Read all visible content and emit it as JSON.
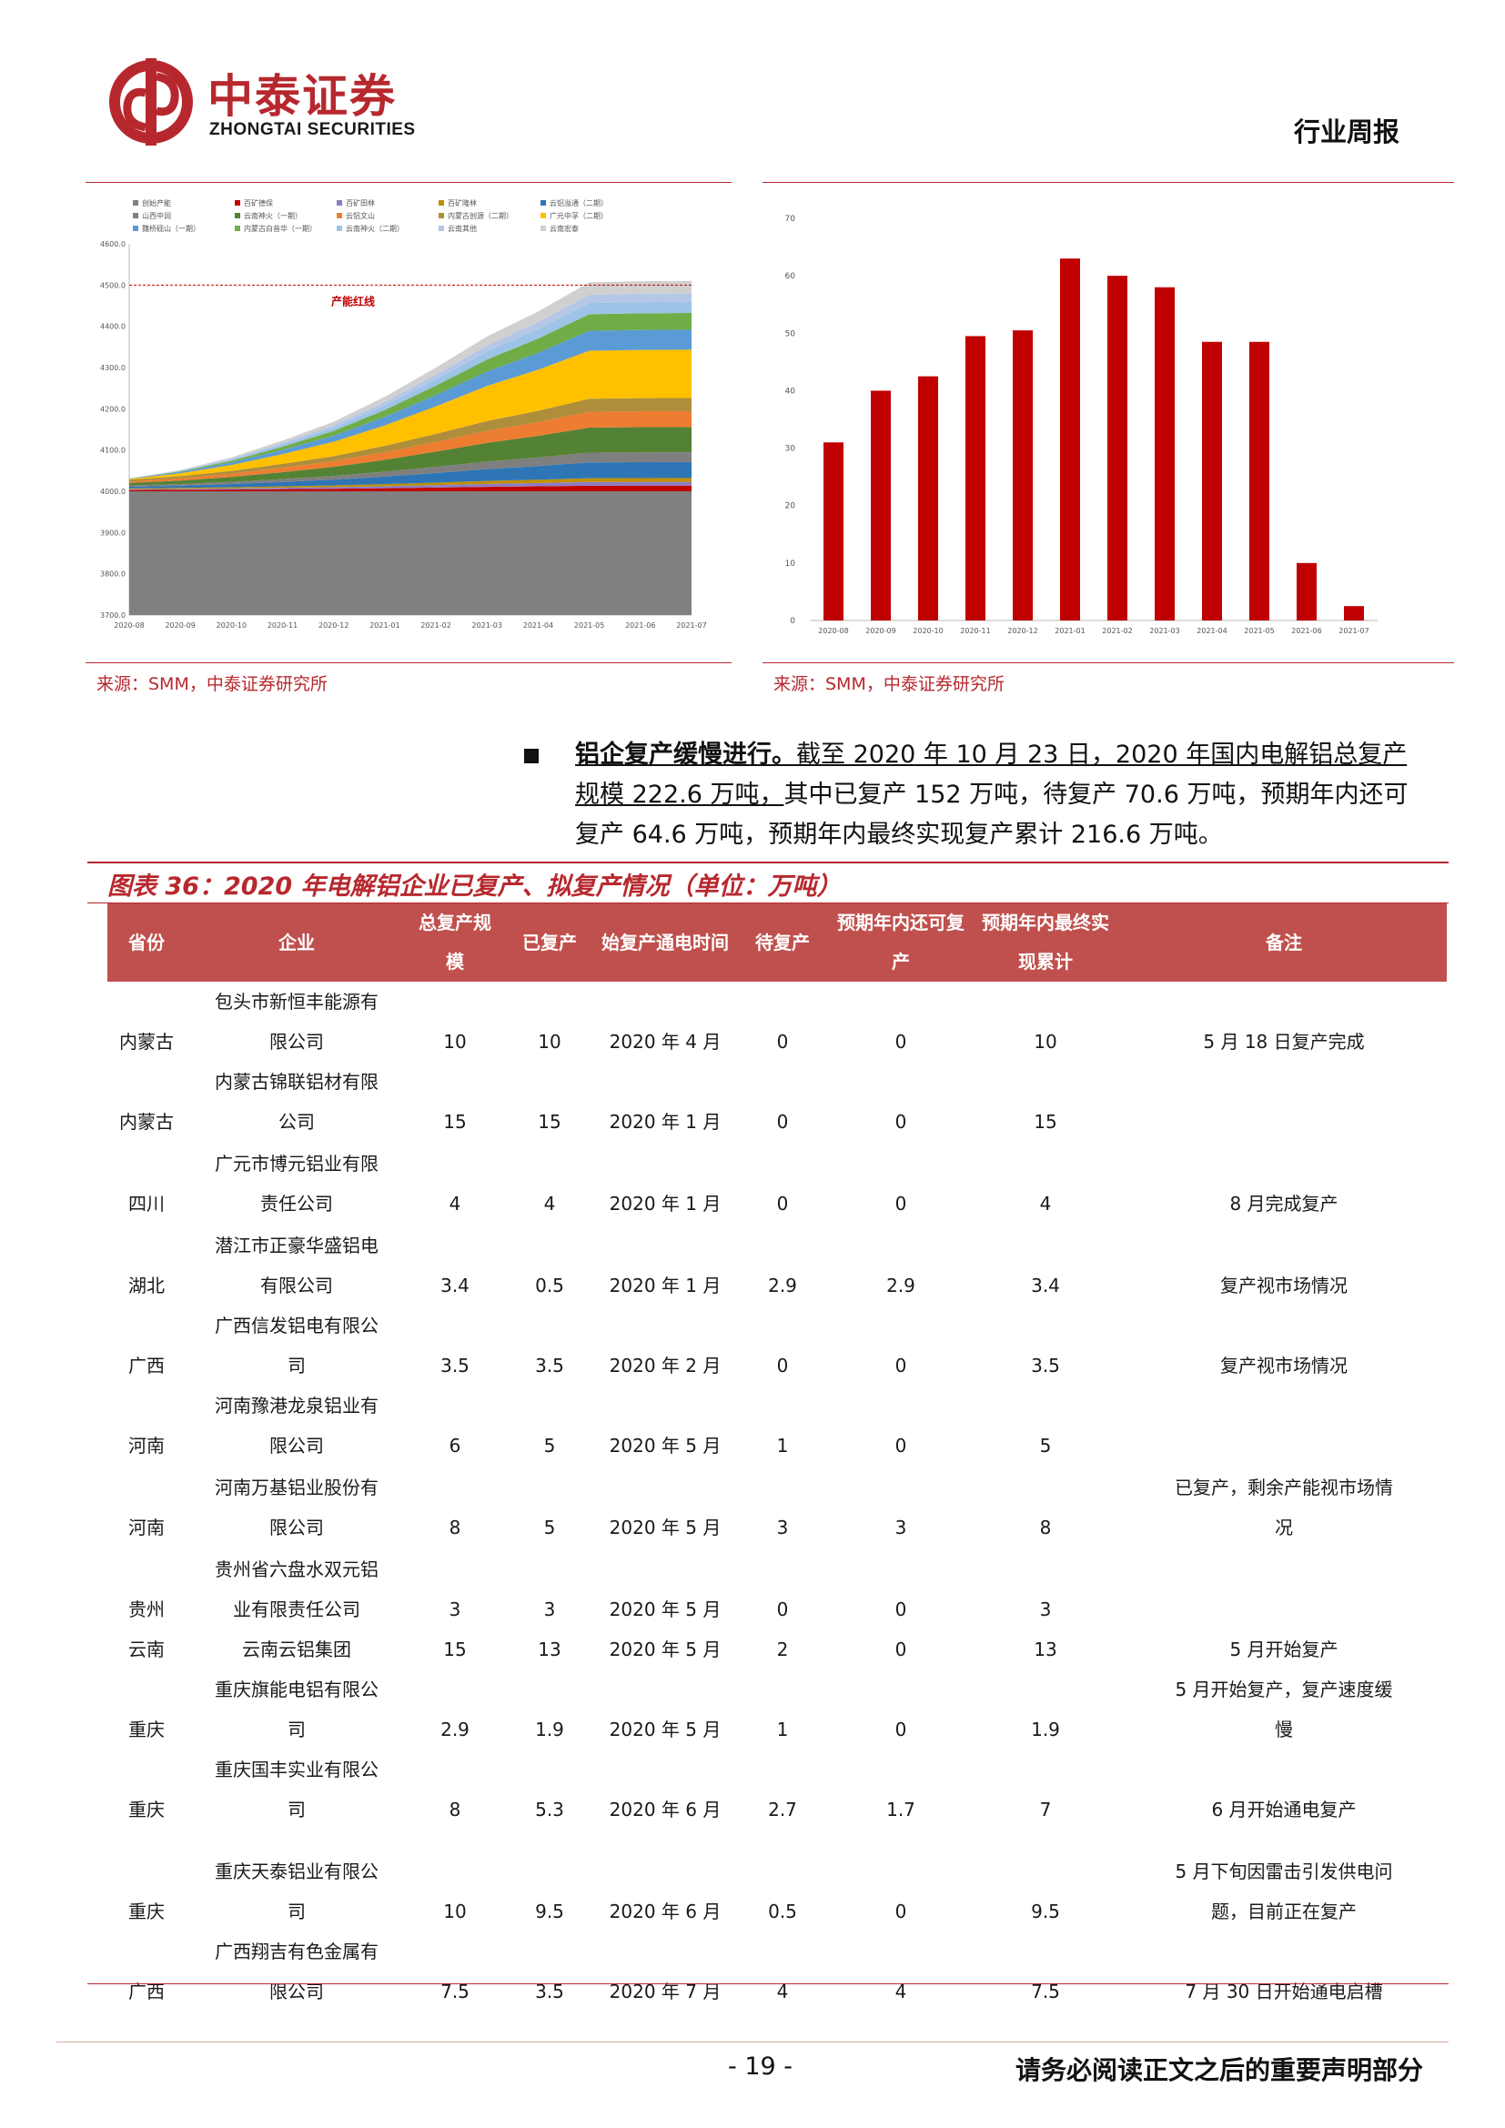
{
  "header": {
    "logo_cn": "中泰证券",
    "logo_en": "ZHONGTAI SECURITIES",
    "report_type": "行业周报"
  },
  "sources": {
    "left": "来源：SMM，中泰证券研究所",
    "right": "来源：SMM，中泰证券研究所"
  },
  "chart_data": [
    {
      "type": "area",
      "stacked": true,
      "legend": [
        "创始产能",
        "百矿德保",
        "百矿田林",
        "百矿隆林",
        "云铝溢通（二期）",
        "山西中润",
        "云南神火（一期）",
        "云铝文山",
        "内蒙古创源（二期）",
        "广元中孚（二期）",
        "魏桥砚山（一期）",
        "内蒙古白音华（一期）",
        "云南神火（二期）",
        "云南其他",
        "云南宏泰"
      ],
      "colors": [
        "#808080",
        "#c00000",
        "#8e7cc3",
        "#bf9000",
        "#2e75b6",
        "#7f7f7f",
        "#548235",
        "#ed7d31",
        "#ae8e3a",
        "#ffc000",
        "#5b9bd5",
        "#70ad47",
        "#9dc3e6",
        "#b4c7e7",
        "#d0d0d0"
      ],
      "categories": [
        "2020-08",
        "2020-09",
        "2020-10",
        "2020-11",
        "2020-12",
        "2021-01",
        "2021-02",
        "2021-03",
        "2021-04",
        "2021-05",
        "2021-06",
        "2021-07"
      ],
      "ylim": [
        3700,
        4600
      ],
      "yticks": [
        "3700.0",
        "3800.0",
        "3900.0",
        "4000.0",
        "4100.0",
        "4200.0",
        "4300.0",
        "4400.0",
        "4500.0",
        "4600.0"
      ],
      "redline_value": 4500,
      "redline_label": "产能红线",
      "totals": [
        4028,
        4048,
        4078,
        4118,
        4163,
        4223,
        4293,
        4368,
        4428,
        4498,
        4500,
        4500
      ]
    },
    {
      "type": "bar",
      "categories": [
        "2020-08",
        "2020-09",
        "2020-10",
        "2020-11",
        "2020-12",
        "2021-01",
        "2021-02",
        "2021-03",
        "2021-04",
        "2021-05",
        "2021-06",
        "2021-07"
      ],
      "values": [
        31,
        40,
        42.5,
        49.5,
        50.5,
        63,
        60,
        58,
        48.5,
        48.5,
        10,
        2.5
      ],
      "ylim": [
        0,
        70
      ],
      "yticks": [
        "0",
        "10",
        "20",
        "30",
        "40",
        "50",
        "60",
        "70"
      ],
      "color": "#c00000"
    }
  ],
  "paragraph": {
    "lead": "铝企复产缓慢进行。",
    "underlined": "截至 2020 年 10 月 23 日，2020 年国内电解铝总复产规模 222.6 万吨，",
    "rest": "其中已复产 152 万吨，待复产 70.6 万吨，预期年内还可复产 64.6 万吨，预期年内最终实现复产累计 216.6 万吨。"
  },
  "table": {
    "title": "图表 36：2020 年电解铝企业已复产、拟复产情况（单位：万吨）",
    "headers": [
      "省份",
      "企业",
      "总复产规模",
      "已复产",
      "始复产通电时间",
      "待复产",
      "预期年内还可复产",
      "预期年内最终实现累计",
      "备注"
    ],
    "rows": [
      {
        "prov": "内蒙古",
        "comp": "包头市新恒丰能源有限公司",
        "total": "10",
        "done": "10",
        "time": "2020 年 4 月",
        "pending": "0",
        "may": "0",
        "final": "10",
        "note": "5 月 18 日复产完成"
      },
      {
        "prov": "内蒙古",
        "comp": "内蒙古锦联铝材有限公司",
        "total": "15",
        "done": "15",
        "time": "2020 年 1 月",
        "pending": "0",
        "may": "0",
        "final": "15",
        "note": ""
      },
      {
        "prov": "四川",
        "comp": "广元市博元铝业有限责任公司",
        "total": "4",
        "done": "4",
        "time": "2020 年 1 月",
        "pending": "0",
        "may": "0",
        "final": "4",
        "note": "8 月完成复产"
      },
      {
        "prov": "湖北",
        "comp": "潜江市正豪华盛铝电有限公司",
        "total": "3.4",
        "done": "0.5",
        "time": "2020 年 1 月",
        "pending": "2.9",
        "may": "2.9",
        "final": "3.4",
        "note": "复产视市场情况"
      },
      {
        "prov": "广西",
        "comp": "广西信发铝电有限公司",
        "total": "3.5",
        "done": "3.5",
        "time": "2020 年 2 月",
        "pending": "0",
        "may": "0",
        "final": "3.5",
        "note": "复产视市场情况"
      },
      {
        "prov": "河南",
        "comp": "河南豫港龙泉铝业有限公司",
        "total": "6",
        "done": "5",
        "time": "2020 年 5 月",
        "pending": "1",
        "may": "0",
        "final": "5",
        "note": ""
      },
      {
        "prov": "河南",
        "comp": "河南万基铝业股份有限公司",
        "total": "8",
        "done": "5",
        "time": "2020 年 5 月",
        "pending": "3",
        "may": "3",
        "final": "8",
        "note": "已复产，剩余产能视市场情况"
      },
      {
        "prov": "贵州",
        "comp": "贵州省六盘水双元铝业有限责任公司",
        "total": "3",
        "done": "3",
        "time": "2020 年 5 月",
        "pending": "0",
        "may": "0",
        "final": "3",
        "note": ""
      },
      {
        "prov": "云南",
        "comp": "云南云铝集团",
        "total": "15",
        "done": "13",
        "time": "2020 年 5 月",
        "pending": "2",
        "may": "0",
        "final": "13",
        "note": "5 月开始复产"
      },
      {
        "prov": "重庆",
        "comp": "重庆旗能电铝有限公司",
        "total": "2.9",
        "done": "1.9",
        "time": "2020 年 5 月",
        "pending": "1",
        "may": "0",
        "final": "1.9",
        "note": "5 月开始复产，复产速度缓慢"
      },
      {
        "prov": "重庆",
        "comp": "重庆国丰实业有限公司",
        "total": "8",
        "done": "5.3",
        "time": "2020 年 6 月",
        "pending": "2.7",
        "may": "1.7",
        "final": "7",
        "note": "6 月开始通电复产"
      },
      {
        "prov": "重庆",
        "comp": "重庆天泰铝业有限公司",
        "total": "10",
        "done": "9.5",
        "time": "2020 年 6 月",
        "pending": "0.5",
        "may": "0",
        "final": "9.5",
        "note": "5 月下旬因雷击引发供电问题，目前正在复产"
      },
      {
        "prov": "广西",
        "comp": "广西翔吉有色金属有限公司",
        "total": "7.5",
        "done": "3.5",
        "time": "2020 年 7 月",
        "pending": "4",
        "may": "4",
        "final": "7.5",
        "note": "7 月 30 日开始通电启槽"
      }
    ]
  },
  "footer": {
    "page": "- 19 -",
    "disclaimer": "请务必阅读正文之后的重要声明部分"
  }
}
